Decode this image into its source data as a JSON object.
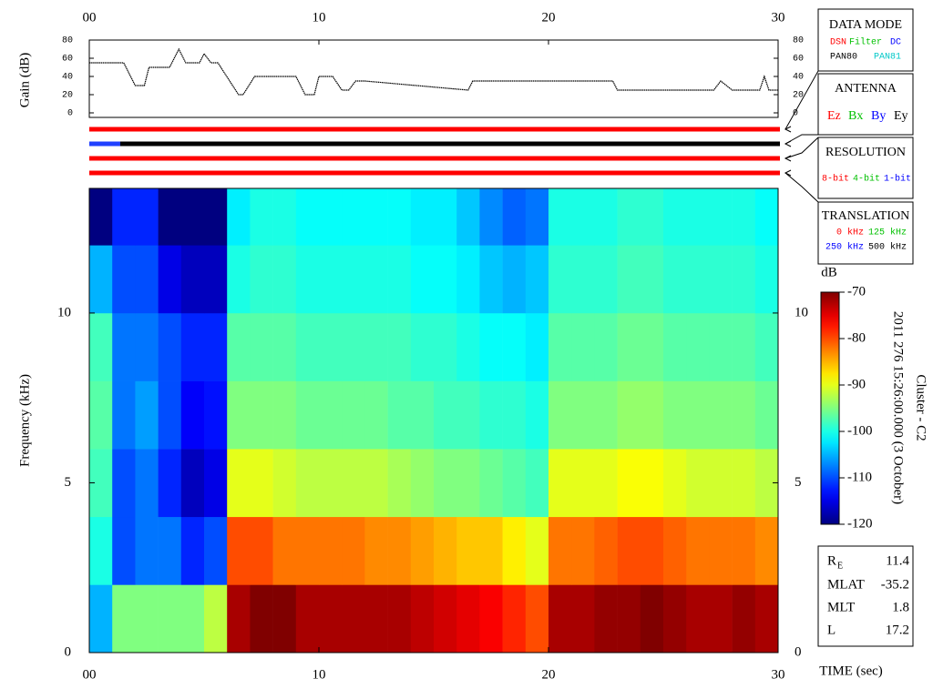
{
  "chart_data": [
    {
      "type": "line",
      "ylabel": "Gain (dB)",
      "x": [
        0,
        1.5,
        2,
        2.4,
        2.6,
        3.5,
        3.9,
        4.2,
        4.8,
        5.0,
        5.3,
        5.6,
        6.5,
        6.7,
        7.2,
        9.0,
        9.4,
        9.8,
        10.0,
        10.6,
        11.0,
        11.3,
        11.6,
        12.0,
        16.5,
        16.7,
        22.8,
        23.0,
        27.2,
        27.5,
        28.0,
        29.2,
        29.4,
        29.6,
        30
      ],
      "series": [
        {
          "name": "Gain",
          "color": "#000000",
          "values": [
            55,
            55,
            30,
            30,
            50,
            50,
            70,
            55,
            55,
            65,
            55,
            55,
            20,
            20,
            40,
            40,
            20,
            20,
            40,
            40,
            25,
            25,
            35,
            35,
            25,
            35,
            35,
            25,
            25,
            35,
            25,
            25,
            40,
            25,
            25
          ]
        }
      ],
      "xlim": [
        0,
        30
      ],
      "xticks": [
        {
          "value": 0,
          "label": "00"
        },
        {
          "value": 10,
          "label": "10"
        },
        {
          "value": 20,
          "label": "20"
        },
        {
          "value": 30,
          "label": "30"
        }
      ],
      "ylim": [
        -5,
        80
      ],
      "yticks": [
        0,
        20,
        40,
        60,
        80
      ]
    },
    {
      "type": "heatmap",
      "xlabel": "TIME (sec)",
      "ylabel": "Frequency (kHz)",
      "xbins": [
        0,
        1,
        2,
        3,
        4,
        5,
        6,
        7,
        8,
        9,
        10,
        11,
        12,
        13,
        14,
        15,
        16,
        17,
        18,
        19,
        20,
        21,
        22,
        23,
        24,
        25,
        26,
        27,
        28,
        29,
        30
      ],
      "ybins": [
        0,
        2,
        4,
        6,
        8,
        10,
        12,
        13.67
      ],
      "z": [
        [
          -105,
          -95,
          -95,
          -95,
          -95,
          -92,
          -72,
          -70,
          -70,
          -72,
          -72,
          -72,
          -72,
          -72,
          -73,
          -74,
          -75,
          -76,
          -78,
          -80,
          -72,
          -72,
          -71,
          -71,
          -70,
          -71,
          -72,
          -72,
          -71,
          -72
        ],
        [
          -100,
          -110,
          -108,
          -108,
          -112,
          -110,
          -80,
          -80,
          -82,
          -82,
          -82,
          -82,
          -83,
          -83,
          -84,
          -85,
          -86,
          -86,
          -88,
          -90,
          -82,
          -82,
          -81,
          -80,
          -80,
          -81,
          -82,
          -82,
          -82,
          -83
        ],
        [
          -98,
          -110,
          -108,
          -112,
          -117,
          -115,
          -90,
          -90,
          -91,
          -92,
          -92,
          -92,
          -92,
          -93,
          -94,
          -95,
          -95,
          -96,
          -97,
          -98,
          -90,
          -90,
          -90,
          -89,
          -89,
          -90,
          -91,
          -91,
          -91,
          -92
        ],
        [
          -97,
          -108,
          -106,
          -110,
          -114,
          -113,
          -95,
          -95,
          -95,
          -96,
          -96,
          -96,
          -96,
          -97,
          -97,
          -98,
          -98,
          -99,
          -99,
          -100,
          -95,
          -95,
          -95,
          -94,
          -94,
          -95,
          -95,
          -95,
          -95,
          -96
        ],
        [
          -98,
          -108,
          -108,
          -110,
          -112,
          -112,
          -97,
          -97,
          -97,
          -98,
          -98,
          -98,
          -98,
          -98,
          -99,
          -99,
          -100,
          -101,
          -101,
          -102,
          -97,
          -97,
          -97,
          -96,
          -96,
          -97,
          -97,
          -97,
          -97,
          -98
        ],
        [
          -105,
          -110,
          -110,
          -115,
          -117,
          -117,
          -100,
          -99,
          -99,
          -100,
          -100,
          -100,
          -100,
          -100,
          -101,
          -101,
          -102,
          -104,
          -105,
          -104,
          -99,
          -99,
          -99,
          -98,
          -98,
          -99,
          -99,
          -99,
          -99,
          -100
        ],
        [
          -120,
          -112,
          -112,
          -120,
          -120,
          -120,
          -102,
          -100,
          -100,
          -101,
          -101,
          -101,
          -101,
          -101,
          -102,
          -102,
          -104,
          -107,
          -109,
          -108,
          -100,
          -100,
          -100,
          -99,
          -99,
          -100,
          -100,
          -100,
          -100,
          -101
        ]
      ],
      "colormap": "jet",
      "colorbar_label": "dB",
      "zlim": [
        -120,
        -70
      ],
      "zticks": [
        -70,
        -80,
        -90,
        -100,
        -110,
        -120
      ],
      "xlim": [
        0,
        30
      ],
      "xticks": [
        {
          "value": 0,
          "label": "00"
        },
        {
          "value": 10,
          "label": "10"
        },
        {
          "value": 20,
          "label": "20"
        },
        {
          "value": 30,
          "label": "30"
        }
      ],
      "ylim": [
        0,
        13.67
      ],
      "yticks": [
        0,
        5,
        10
      ]
    }
  ],
  "panels": [
    {
      "title": "DATA MODE",
      "items": [
        {
          "text": "DSN",
          "color": "#ff0000"
        },
        {
          "text": "Filter",
          "color": "#00c000"
        },
        {
          "text": "DC",
          "color": "#0000ff"
        },
        {
          "text": "PAN80",
          "color": "#000000"
        },
        {
          "text": "PAN81",
          "color": "#00c8c8"
        }
      ]
    },
    {
      "title": "ANTENNA",
      "items": [
        {
          "text": "Ez",
          "color": "#ff0000"
        },
        {
          "text": "Bx",
          "color": "#00c000"
        },
        {
          "text": "By",
          "color": "#0000ff"
        },
        {
          "text": "Ey",
          "color": "#000000"
        }
      ]
    },
    {
      "title": "RESOLUTION",
      "items": [
        {
          "text": "8-bit",
          "color": "#ff0000"
        },
        {
          "text": "4-bit",
          "color": "#00c000"
        },
        {
          "text": "1-bit",
          "color": "#0000ff"
        }
      ]
    },
    {
      "title": "TRANSLATION",
      "items": [
        {
          "text": "0 kHz",
          "color": "#ff0000"
        },
        {
          "text": "125 kHz",
          "color": "#00c000"
        },
        {
          "text": "250 kHz",
          "color": "#0000ff"
        },
        {
          "text": "500 kHz",
          "color": "#000000"
        }
      ]
    }
  ],
  "timestamp": "2011 276 15:26:00.000 (3 October)",
  "spacecraft": "Cluster - C2",
  "info": [
    {
      "label": "R",
      "sub": "E",
      "value": 11.4
    },
    {
      "label": "MLAT",
      "value": -35.2
    },
    {
      "label": "MLT",
      "value": 1.8
    },
    {
      "label": "L",
      "value": 17.2
    }
  ]
}
